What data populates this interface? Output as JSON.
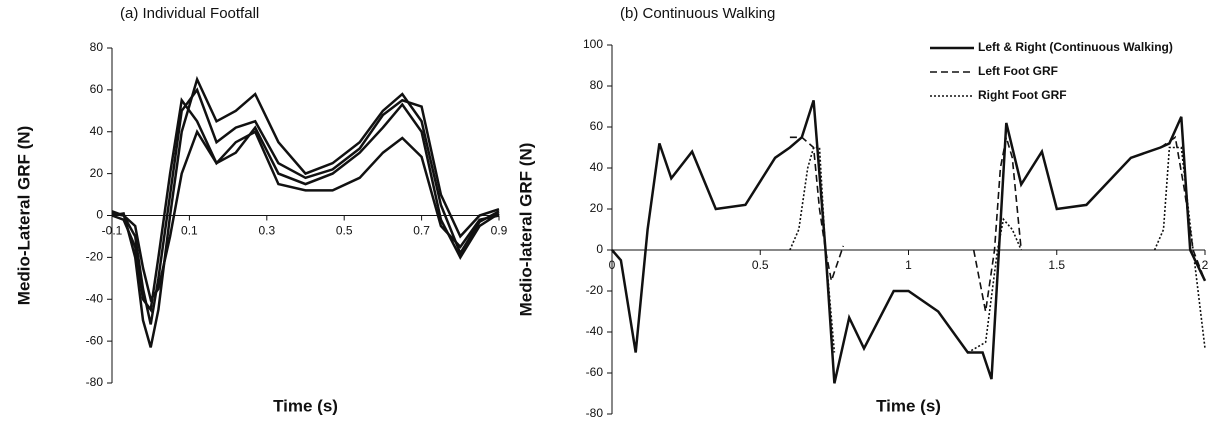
{
  "chart_data": [
    {
      "type": "line",
      "title": "(a) Individual Footfall",
      "x_label": "Time (s)",
      "y_label": "Medio-Lateral GRF (N)",
      "xlim": [
        -0.1,
        0.9
      ],
      "xticks": [
        -0.1,
        0.1,
        0.3,
        0.5,
        0.7,
        0.9
      ],
      "ylim": [
        -80,
        80
      ],
      "yticks": [
        -80,
        -60,
        -40,
        -20,
        0,
        20,
        40,
        60,
        80
      ],
      "grid": false,
      "series": [
        {
          "color": "#111111",
          "dash": "solid",
          "x": [
            -0.1,
            -0.07,
            -0.04,
            -0.02,
            0,
            0.02,
            0.05,
            0.08,
            0.12,
            0.17,
            0.22,
            0.27,
            0.33,
            0.4,
            0.47,
            0.54,
            0.6,
            0.65,
            0.7,
            0.75,
            0.8,
            0.85,
            0.9
          ],
          "values": [
            0,
            1,
            -20,
            -50,
            -63,
            -45,
            0,
            40,
            65,
            45,
            50,
            58,
            35,
            20,
            25,
            35,
            50,
            58,
            45,
            5,
            -18,
            -3,
            2
          ]
        },
        {
          "color": "#111111",
          "dash": "solid",
          "x": [
            -0.1,
            -0.07,
            -0.04,
            -0.02,
            0,
            0.02,
            0.05,
            0.08,
            0.12,
            0.17,
            0.22,
            0.27,
            0.33,
            0.4,
            0.47,
            0.54,
            0.6,
            0.65,
            0.7,
            0.75,
            0.8,
            0.85,
            0.9
          ],
          "values": [
            2,
            0,
            -10,
            -35,
            -52,
            -30,
            10,
            50,
            60,
            35,
            42,
            45,
            25,
            18,
            22,
            32,
            48,
            55,
            52,
            10,
            -10,
            0,
            3
          ]
        },
        {
          "color": "#111111",
          "dash": "solid",
          "x": [
            -0.1,
            -0.07,
            -0.04,
            -0.02,
            0,
            0.02,
            0.05,
            0.08,
            0.12,
            0.17,
            0.22,
            0.27,
            0.33,
            0.4,
            0.47,
            0.54,
            0.6,
            0.65,
            0.7,
            0.75,
            0.8,
            0.85,
            0.9
          ],
          "values": [
            0,
            -2,
            -15,
            -40,
            -45,
            -20,
            20,
            55,
            45,
            25,
            30,
            42,
            20,
            15,
            20,
            30,
            42,
            53,
            40,
            -2,
            -20,
            -5,
            1
          ]
        },
        {
          "color": "#111111",
          "dash": "solid",
          "x": [
            -0.1,
            -0.07,
            -0.04,
            -0.02,
            0,
            0.02,
            0.05,
            0.08,
            0.12,
            0.17,
            0.22,
            0.27,
            0.33,
            0.4,
            0.47,
            0.54,
            0.6,
            0.65,
            0.7,
            0.75,
            0.8,
            0.85,
            0.9
          ],
          "values": [
            1,
            0,
            -5,
            -25,
            -40,
            -35,
            -10,
            20,
            40,
            25,
            35,
            40,
            15,
            12,
            12,
            18,
            30,
            37,
            28,
            -5,
            -15,
            -2,
            0
          ]
        }
      ]
    },
    {
      "type": "line",
      "title": "(b) Continuous Walking",
      "x_label": "Time (s)",
      "y_label": "Medio-lateral GRF (N)",
      "xlim": [
        0,
        2
      ],
      "xticks": [
        0,
        0.5,
        1,
        1.5,
        2
      ],
      "ylim": [
        -80,
        100
      ],
      "yticks": [
        -80,
        -60,
        -40,
        -20,
        0,
        20,
        40,
        60,
        80,
        100
      ],
      "grid": false,
      "legend": "top-right",
      "series": [
        {
          "name": "Left & Right (Continuous Walking)",
          "color": "#111111",
          "dash": "solid",
          "x": [
            0,
            0.03,
            0.08,
            0.12,
            0.16,
            0.2,
            0.27,
            0.35,
            0.45,
            0.55,
            0.6,
            0.64,
            0.68,
            0.72,
            0.75,
            0.8,
            0.85,
            0.95,
            1.0,
            1.1,
            1.2,
            1.25,
            1.28,
            1.33,
            1.38,
            1.45,
            1.5,
            1.6,
            1.75,
            1.85,
            1.88,
            1.92,
            1.95,
            2.0
          ],
          "values": [
            0,
            -5,
            -50,
            10,
            52,
            35,
            48,
            20,
            22,
            45,
            50,
            55,
            73,
            0,
            -65,
            -33,
            -48,
            -20,
            -20,
            -30,
            -50,
            -50,
            -63,
            62,
            32,
            48,
            20,
            22,
            45,
            50,
            52,
            65,
            0,
            -15
          ]
        },
        {
          "name": "Left Foot GRF",
          "color": "#111111",
          "dash": "dashed",
          "x": [
            0.6,
            0.64,
            0.68,
            0.7,
            0.72,
            0.74,
            0.78,
            null,
            1.22,
            1.26,
            1.29,
            1.31,
            1.33,
            1.35,
            1.38,
            null,
            1.85,
            1.9,
            1.93,
            1.96,
            2.0
          ],
          "values": [
            55,
            55,
            50,
            20,
            0,
            -15,
            2,
            null,
            0,
            -30,
            0,
            40,
            55,
            45,
            0,
            null,
            50,
            55,
            30,
            0,
            -15
          ]
        },
        {
          "name": "Right Foot GRF",
          "color": "#111111",
          "dash": "dotted",
          "x": [
            0.6,
            0.63,
            0.66,
            0.68,
            0.7,
            0.72,
            0.75,
            null,
            1.2,
            1.26,
            1.3,
            1.32,
            1.35,
            1.38,
            null,
            1.83,
            1.86,
            1.88,
            1.92,
            1.96,
            2.0
          ],
          "values": [
            0,
            10,
            40,
            50,
            50,
            0,
            -50,
            null,
            -50,
            -45,
            0,
            15,
            10,
            0,
            null,
            0,
            10,
            50,
            50,
            0,
            -48
          ]
        }
      ]
    }
  ]
}
